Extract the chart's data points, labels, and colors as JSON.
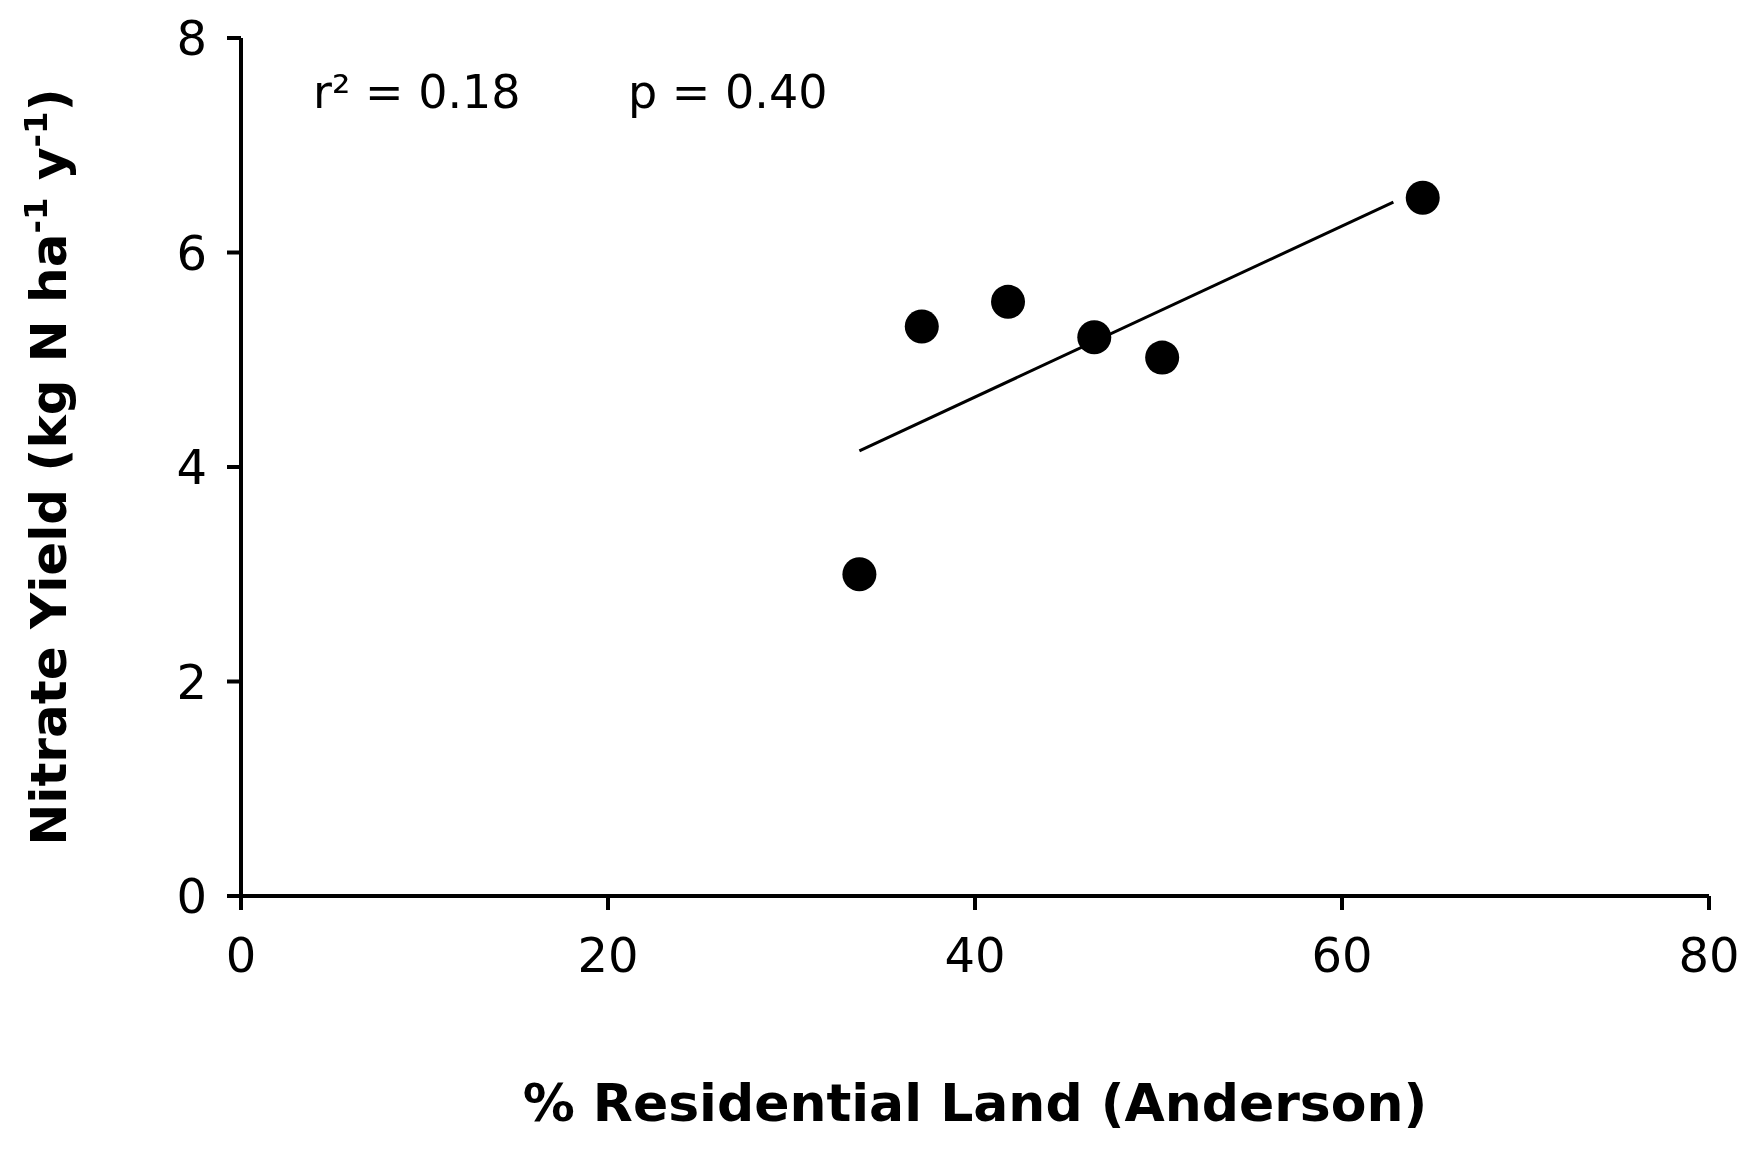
{
  "chart_data": {
    "type": "scatter",
    "xlabel": "% Residential Land (Anderson)",
    "ylabel": "Nitrate Yield (kg N ha$^{-1}$ y$^{-1}$)",
    "annotations": [
      "r² = 0.18",
      "p = 0.40"
    ],
    "xlim": [
      0,
      80
    ],
    "xticks": [
      0,
      20,
      40,
      60,
      80
    ],
    "ylim": [
      0,
      8
    ],
    "yticks": [
      0,
      2,
      4,
      6,
      8
    ],
    "grid": false,
    "legend": false,
    "marker": "circle",
    "series": [
      {
        "color": "#000000",
        "x": [
          33.7,
          37.1,
          41.8,
          46.5,
          50.2,
          64.4
        ],
        "values": [
          3.0,
          5.31,
          5.54,
          5.21,
          5.02,
          6.51
        ]
      },
      {
        "type": "line",
        "marker": "none",
        "color": "#000000",
        "x": [
          33.7,
          62.8
        ],
        "values": [
          4.15,
          6.47
        ]
      }
    ]
  }
}
